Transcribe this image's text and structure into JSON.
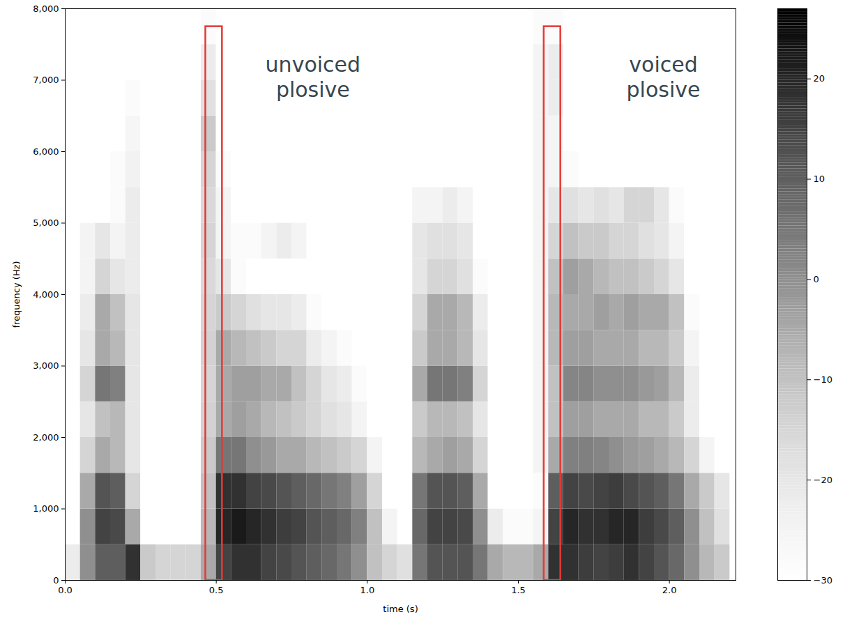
{
  "chart_data": {
    "type": "heatmap",
    "x_label": "time (s)",
    "y_label": "frequency (Hz)",
    "xlim": [
      0,
      2.22
    ],
    "xticks": [
      0,
      0.5,
      1,
      1.5,
      2
    ],
    "ylim": [
      0,
      8000
    ],
    "yticks": [
      0,
      1000,
      2000,
      3000,
      4000,
      5000,
      6000,
      7000,
      8000
    ],
    "color": "greys",
    "colorbar": {
      "range": [
        -30,
        27
      ],
      "ticks": [
        -30,
        -20,
        -10,
        0,
        10,
        20
      ]
    },
    "time_bins": [
      0,
      0.05,
      0.1,
      0.15,
      0.2,
      0.25,
      0.3,
      0.35,
      0.4,
      0.45,
      0.5,
      0.55,
      0.6,
      0.65,
      0.7,
      0.75,
      0.8,
      0.85,
      0.9,
      0.95,
      1.0,
      1.05,
      1.1,
      1.15,
      1.2,
      1.25,
      1.3,
      1.35,
      1.4,
      1.45,
      1.5,
      1.55,
      1.6,
      1.65,
      1.7,
      1.75,
      1.8,
      1.85,
      1.9,
      1.95,
      2.0,
      2.05,
      2.1,
      2.15,
      2.2
    ],
    "frequency_bins": [
      0,
      500,
      1000,
      1500,
      2000,
      2500,
      3000,
      3500,
      4000,
      4500,
      5000,
      5500,
      6000,
      6500,
      7000,
      7500,
      8000
    ],
    "values": [
      [
        -22,
        -30,
        -30,
        -30,
        -30,
        -30,
        -30,
        -30,
        -30,
        -30,
        -30,
        -30,
        -30,
        -30,
        -30,
        -30
      ],
      [
        0,
        0,
        -5,
        -15,
        -20,
        -15,
        -20,
        -22,
        -25,
        -25,
        -30,
        -30,
        -30,
        -30,
        -30,
        -30
      ],
      [
        10,
        15,
        12,
        -5,
        -10,
        5,
        -5,
        -5,
        -15,
        -20,
        -30,
        -30,
        -30,
        -30,
        -30,
        -30
      ],
      [
        10,
        14,
        10,
        -8,
        -8,
        3,
        -8,
        -10,
        -20,
        -25,
        -28,
        -28,
        -30,
        -30,
        -30,
        -30
      ],
      [
        18,
        -5,
        -15,
        -20,
        -20,
        -20,
        -20,
        -20,
        -22,
        -22,
        -22,
        -24,
        -26,
        -28,
        -30,
        -30
      ],
      [
        -12,
        -30,
        -30,
        -30,
        -30,
        -30,
        -30,
        -30,
        -30,
        -30,
        -30,
        -30,
        -30,
        -30,
        -30,
        -30
      ],
      [
        -15,
        -30,
        -30,
        -30,
        -30,
        -30,
        -30,
        -30,
        -30,
        -30,
        -30,
        -30,
        -30,
        -30,
        -30,
        -30
      ],
      [
        -15,
        -30,
        -30,
        -30,
        -30,
        -30,
        -30,
        -30,
        -30,
        -30,
        -30,
        -30,
        -30,
        -30,
        -30,
        -30
      ],
      [
        -15,
        -30,
        -30,
        -30,
        -30,
        -30,
        -30,
        -30,
        -30,
        -30,
        -30,
        -30,
        -30,
        -30,
        -30,
        -30
      ],
      [
        -5,
        -8,
        -10,
        -12,
        -14,
        -15,
        -14,
        -15,
        -16,
        -15,
        -16,
        -15,
        -12,
        -18,
        -22,
        -28
      ],
      [
        15,
        20,
        18,
        5,
        -5,
        -5,
        -5,
        -12,
        -20,
        -25,
        -25,
        -28,
        -30,
        -30,
        -30,
        -30
      ],
      [
        18,
        22,
        18,
        5,
        -3,
        -3,
        -8,
        -15,
        -28,
        -28,
        -30,
        -30,
        -30,
        -30,
        -30,
        -30
      ],
      [
        18,
        20,
        15,
        0,
        -5,
        -3,
        -10,
        -18,
        -30,
        -28,
        -30,
        -30,
        -30,
        -30,
        -30,
        -30
      ],
      [
        15,
        18,
        14,
        -2,
        -8,
        -5,
        -12,
        -20,
        -30,
        -25,
        -30,
        -30,
        -30,
        -30,
        -30,
        -30
      ],
      [
        14,
        16,
        12,
        -5,
        -10,
        -5,
        -15,
        -20,
        -30,
        -22,
        -30,
        -30,
        -30,
        -30,
        -30,
        -30
      ],
      [
        12,
        15,
        10,
        -5,
        -12,
        -10,
        -15,
        -22,
        -30,
        -25,
        -30,
        -30,
        -30,
        -30,
        -30,
        -30
      ],
      [
        10,
        12,
        8,
        -8,
        -15,
        -15,
        -22,
        -28,
        -30,
        -30,
        -30,
        -30,
        -30,
        -30,
        -30,
        -30
      ],
      [
        8,
        10,
        5,
        -10,
        -18,
        -20,
        -25,
        -30,
        -30,
        -30,
        -30,
        -30,
        -30,
        -30,
        -30,
        -30
      ],
      [
        5,
        8,
        3,
        -12,
        -20,
        -22,
        -28,
        -30,
        -30,
        -30,
        -30,
        -30,
        -30,
        -30,
        -30,
        -30
      ],
      [
        0,
        3,
        -3,
        -15,
        -25,
        -28,
        -30,
        -30,
        -30,
        -30,
        -30,
        -30,
        -30,
        -30,
        -30,
        -30
      ],
      [
        -10,
        -10,
        -15,
        -25,
        -30,
        -30,
        -30,
        -30,
        -30,
        -30,
        -30,
        -30,
        -30,
        -30,
        -30,
        -30
      ],
      [
        -15,
        -25,
        -30,
        -30,
        -30,
        -30,
        -30,
        -30,
        -30,
        -30,
        -30,
        -30,
        -30,
        -30,
        -30,
        -30
      ],
      [
        -18,
        -30,
        -30,
        -30,
        -30,
        -30,
        -30,
        -30,
        -30,
        -30,
        -30,
        -30,
        -30,
        -30,
        -30,
        -30
      ],
      [
        5,
        8,
        5,
        -8,
        -12,
        -5,
        -12,
        -15,
        -20,
        -20,
        -25,
        -30,
        -30,
        -30,
        -30,
        -30
      ],
      [
        12,
        15,
        12,
        -5,
        -8,
        5,
        -5,
        -5,
        -15,
        -18,
        -25,
        -30,
        -30,
        -30,
        -30,
        -30
      ],
      [
        12,
        15,
        12,
        -3,
        -8,
        5,
        -5,
        -5,
        -15,
        -18,
        -22,
        -30,
        -30,
        -30,
        -30,
        -30
      ],
      [
        12,
        14,
        10,
        -5,
        -10,
        3,
        -8,
        -8,
        -18,
        -20,
        -25,
        -30,
        -30,
        -30,
        -30,
        -30
      ],
      [
        5,
        0,
        -5,
        -15,
        -20,
        -15,
        -20,
        -22,
        -28,
        -30,
        -30,
        -30,
        -30,
        -30,
        -30,
        -30
      ],
      [
        -5,
        -22,
        -30,
        -30,
        -30,
        -30,
        -30,
        -30,
        -30,
        -30,
        -30,
        -30,
        -30,
        -30,
        -30,
        -30
      ],
      [
        -8,
        -28,
        -30,
        -30,
        -30,
        -30,
        -30,
        -30,
        -30,
        -30,
        -30,
        -30,
        -30,
        -30,
        -30,
        -30
      ],
      [
        -8,
        -28,
        -30,
        -30,
        -30,
        -30,
        -30,
        -30,
        -30,
        -30,
        -30,
        -30,
        -30,
        -30,
        -30,
        -30
      ],
      [
        -5,
        -25,
        -28,
        -25,
        -25,
        -25,
        -25,
        -25,
        -25,
        -25,
        -25,
        -25,
        -25,
        -25,
        -25,
        -28
      ],
      [
        18,
        15,
        10,
        -5,
        -10,
        -10,
        -8,
        -8,
        -10,
        -15,
        -20,
        -25,
        -25,
        -22,
        -22,
        -28
      ],
      [
        18,
        20,
        15,
        3,
        -3,
        2,
        -3,
        -5,
        -3,
        -10,
        -18,
        -28,
        -30,
        -30,
        -30,
        -30
      ],
      [
        16,
        18,
        14,
        3,
        -3,
        2,
        -3,
        -5,
        -5,
        -12,
        -20,
        -30,
        -30,
        -30,
        -30,
        -30
      ],
      [
        15,
        18,
        15,
        2,
        -5,
        0,
        -5,
        -3,
        -8,
        -12,
        -18,
        -30,
        -30,
        -30,
        -30,
        -30
      ],
      [
        16,
        20,
        16,
        0,
        -5,
        0,
        -5,
        -5,
        -10,
        -15,
        -20,
        -30,
        -30,
        -30,
        -30,
        -30
      ],
      [
        18,
        20,
        14,
        -2,
        -5,
        0,
        -5,
        -3,
        -10,
        -15,
        -15,
        -30,
        -30,
        -30,
        -30,
        -30
      ],
      [
        15,
        16,
        12,
        -3,
        -8,
        -2,
        -8,
        -5,
        -12,
        -18,
        -15,
        -30,
        -30,
        -30,
        -30,
        -30
      ],
      [
        12,
        14,
        10,
        -5,
        -8,
        -3,
        -8,
        -5,
        -15,
        -20,
        -20,
        -30,
        -30,
        -30,
        -30,
        -30
      ],
      [
        8,
        10,
        5,
        -8,
        -12,
        -8,
        -12,
        -10,
        -20,
        -25,
        -28,
        -30,
        -30,
        -30,
        -30,
        -30
      ],
      [
        0,
        0,
        -5,
        -15,
        -22,
        -22,
        -25,
        -28,
        -30,
        -30,
        -30,
        -30,
        -30,
        -30,
        -30,
        -30
      ],
      [
        -8,
        -10,
        -12,
        -25,
        -30,
        -30,
        -30,
        -30,
        -30,
        -30,
        -30,
        -30,
        -30,
        -30,
        -30,
        -30
      ],
      [
        -12,
        -18,
        -20,
        -30,
        -30,
        -30,
        -30,
        -30,
        -30,
        -30,
        -30,
        -30,
        -30,
        -30,
        -30,
        -30
      ]
    ],
    "annotations": [
      {
        "text": "unvoiced plosive",
        "x": 0.82,
        "y": 7050,
        "color": "#e53935",
        "box": {
          "x": [
            0.465,
            0.52
          ],
          "y": [
            0,
            7750
          ]
        }
      },
      {
        "text": "voiced plosive",
        "x": 1.98,
        "y": 7050,
        "color": "#e53935",
        "box": {
          "x": [
            1.585,
            1.64
          ],
          "y": [
            0,
            7750
          ]
        }
      }
    ]
  }
}
